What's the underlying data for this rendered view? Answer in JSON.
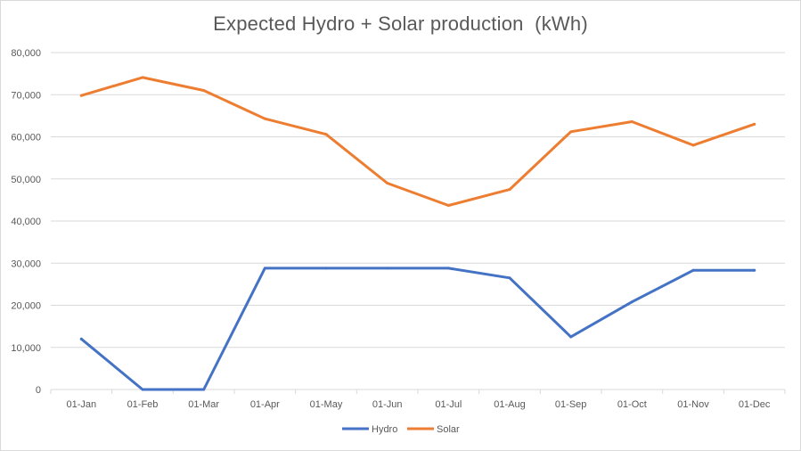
{
  "chart_data": {
    "type": "line",
    "title": "Expected Hydro + Solar production  (kWh)",
    "xlabel": "",
    "ylabel": "",
    "categories": [
      "01-Jan",
      "01-Feb",
      "01-Mar",
      "01-Apr",
      "01-May",
      "01-Jun",
      "01-Jul",
      "01-Aug",
      "01-Sep",
      "01-Oct",
      "01-Nov",
      "01-Dec"
    ],
    "ylim": [
      0,
      80000
    ],
    "yticks": [
      0,
      10000,
      20000,
      30000,
      40000,
      50000,
      60000,
      70000,
      80000
    ],
    "ytick_labels": [
      "0",
      "10,000",
      "20,000",
      "30,000",
      "40,000",
      "50,000",
      "60,000",
      "70,000",
      "80,000"
    ],
    "grid": true,
    "legend_position": "bottom",
    "series": [
      {
        "name": "Hydro",
        "color": "#4472c4",
        "values": [
          12000,
          0,
          0,
          28800,
          28800,
          28800,
          28800,
          26500,
          12500,
          20800,
          28300,
          28300
        ]
      },
      {
        "name": "Solar",
        "color": "#ed7d31",
        "values": [
          69800,
          74100,
          71000,
          64300,
          60600,
          49000,
          43700,
          47500,
          61200,
          63600,
          58000,
          63000
        ]
      }
    ]
  }
}
